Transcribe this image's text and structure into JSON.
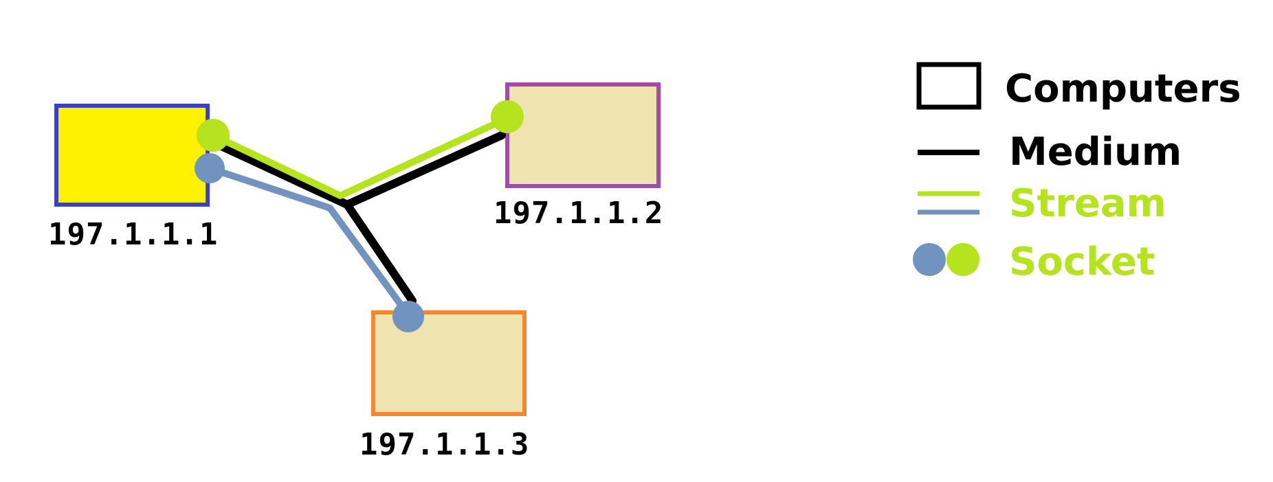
{
  "colors": {
    "medium": "#000000",
    "stream_green": "#b5e31e",
    "stream_blue": "#7093c0",
    "socket_green": "#b5e31e",
    "socket_blue": "#7093c0",
    "legend_black_text": "#000000",
    "legend_green_text": "#b5e31e"
  },
  "computers": [
    {
      "ip": "197.1.1.1",
      "fill": "#fff200",
      "border": "#3b3fcf"
    },
    {
      "ip": "197.1.1.2",
      "fill": "#efe3b0",
      "border": "#a14ca6"
    },
    {
      "ip": "197.1.1.3",
      "fill": "#efe3b0",
      "border": "#f7862e"
    }
  ],
  "legend": {
    "computers": {
      "label": "Computers",
      "icon": "rectangle-outline-icon"
    },
    "medium": {
      "label": "Medium",
      "icon": "black-line-icon"
    },
    "stream": {
      "label": "Stream",
      "icon": "double-line-icon"
    },
    "socket": {
      "label": "Socket",
      "icon": "two-dots-icon"
    }
  }
}
